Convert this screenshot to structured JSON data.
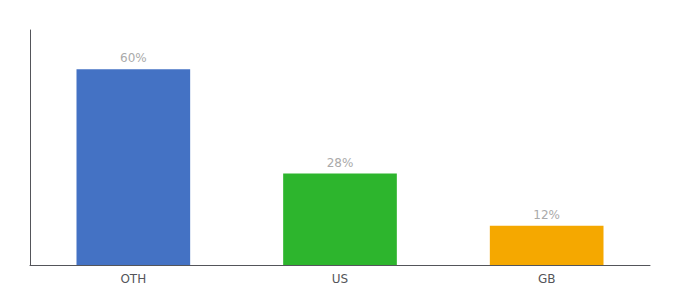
{
  "chart_data": {
    "type": "bar",
    "categories": [
      "OTH",
      "US",
      "GB"
    ],
    "values": [
      60,
      28,
      12
    ],
    "value_labels": [
      "60%",
      "28%",
      "12%"
    ],
    "data_labels": true,
    "colors": [
      "#4472c4",
      "#2db52d",
      "#f5a800"
    ],
    "ylim": [
      0,
      72
    ],
    "tick_labels": "x",
    "grid": false
  }
}
